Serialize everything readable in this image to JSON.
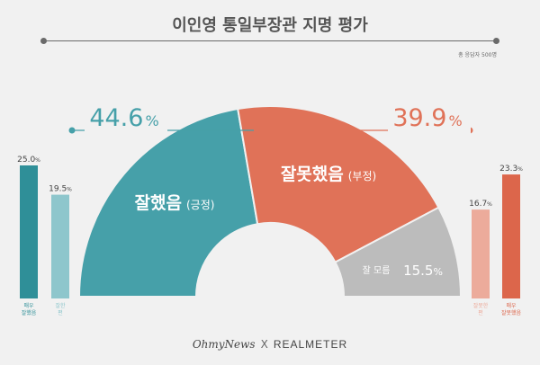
{
  "title": "이인영 통일부장관 지명 평가",
  "respondents": "총 응답자 500명",
  "footer": {
    "left": "OhmyNews",
    "separator": "X",
    "right": "REALMETER"
  },
  "colors": {
    "positive": "#46a0a9",
    "negative": "#e07258",
    "unknown": "#bcbcbc",
    "very_positive": "#2f8f98",
    "somewhat_positive": "#8ec6cc",
    "somewhat_negative": "#ecab9b",
    "very_negative": "#dc664b",
    "bg": "#f1f1f1"
  },
  "chart_data": [
    {
      "type": "pie",
      "subtype": "half-donut",
      "slices": [
        {
          "label": "잘했음",
          "sub": "(긍정)",
          "value": 44.6,
          "color": "#46a0a9"
        },
        {
          "label": "잘못했음",
          "sub": "(부정)",
          "value": 39.9,
          "color": "#e07258"
        },
        {
          "label": "잘 모름",
          "sub": "",
          "value": 15.5,
          "color": "#bcbcbc"
        }
      ],
      "headline_values": {
        "positive": "44.6",
        "negative": "39.9",
        "unit": "%"
      }
    },
    {
      "type": "bar",
      "name": "positive-breakdown",
      "categories": [
        "매우 잘했음",
        "잘한 편"
      ],
      "category_lines": [
        [
          "매우",
          "잘했음"
        ],
        [
          "잘한",
          "편"
        ]
      ],
      "values": [
        25.0,
        19.5
      ],
      "colors": [
        "#2f8f98",
        "#8ec6cc"
      ],
      "ylim": [
        0,
        25
      ]
    },
    {
      "type": "bar",
      "name": "negative-breakdown",
      "categories": [
        "잘못한 편",
        "매우 잘못했음"
      ],
      "category_lines": [
        [
          "잘못한",
          "편"
        ],
        [
          "매우",
          "잘못했음"
        ]
      ],
      "values": [
        16.7,
        23.3
      ],
      "colors": [
        "#ecab9b",
        "#dc664b"
      ],
      "ylim": [
        0,
        25
      ]
    }
  ]
}
